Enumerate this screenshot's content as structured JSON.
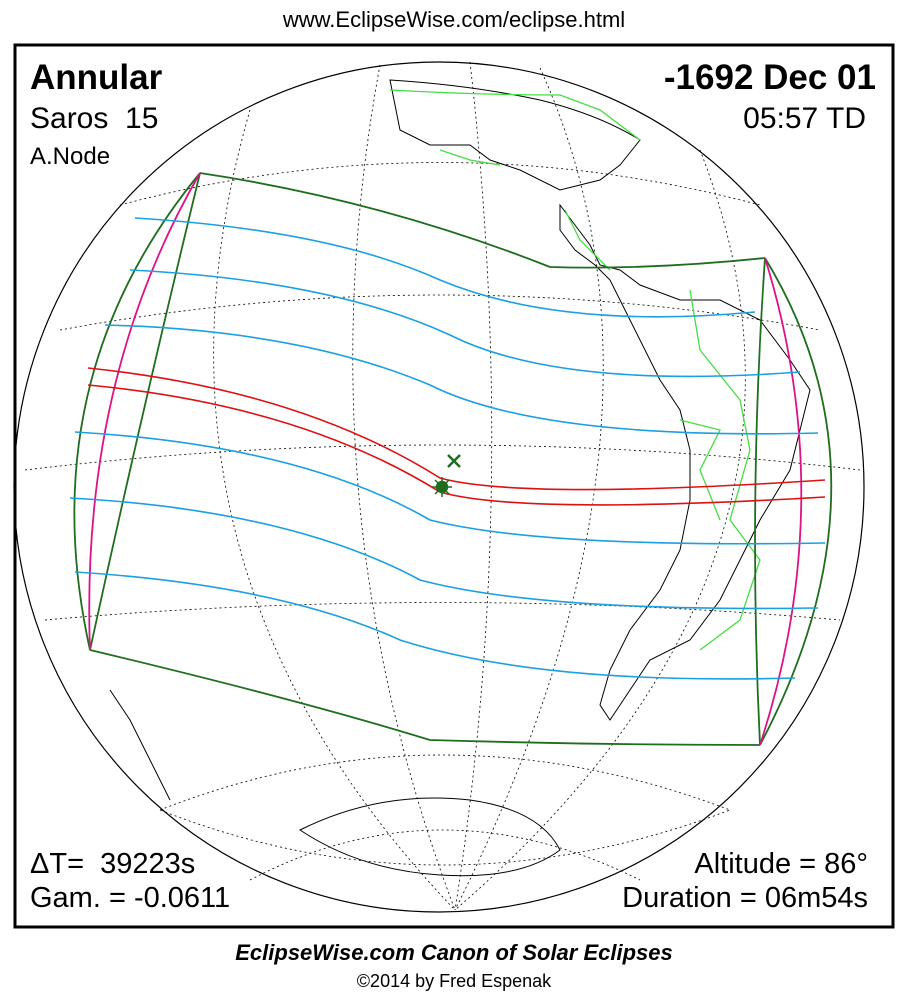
{
  "header": {
    "url": "www.EclipseWise.com/eclipse.html"
  },
  "eclipse": {
    "type": "Annular",
    "saros": "Saros  15",
    "node": "A.Node",
    "date": "-1692 Dec 01",
    "time": "05:57 TD",
    "delta_t": "ΔT=  39223s",
    "gamma": "Gam. = -0.0611",
    "altitude": "Altitude = 86°",
    "duration": "Duration = 06m54s"
  },
  "footer": {
    "title": "EclipseWise.com Canon of Solar Eclipses",
    "copyright": "©2014 by Fred Espenak"
  }
}
